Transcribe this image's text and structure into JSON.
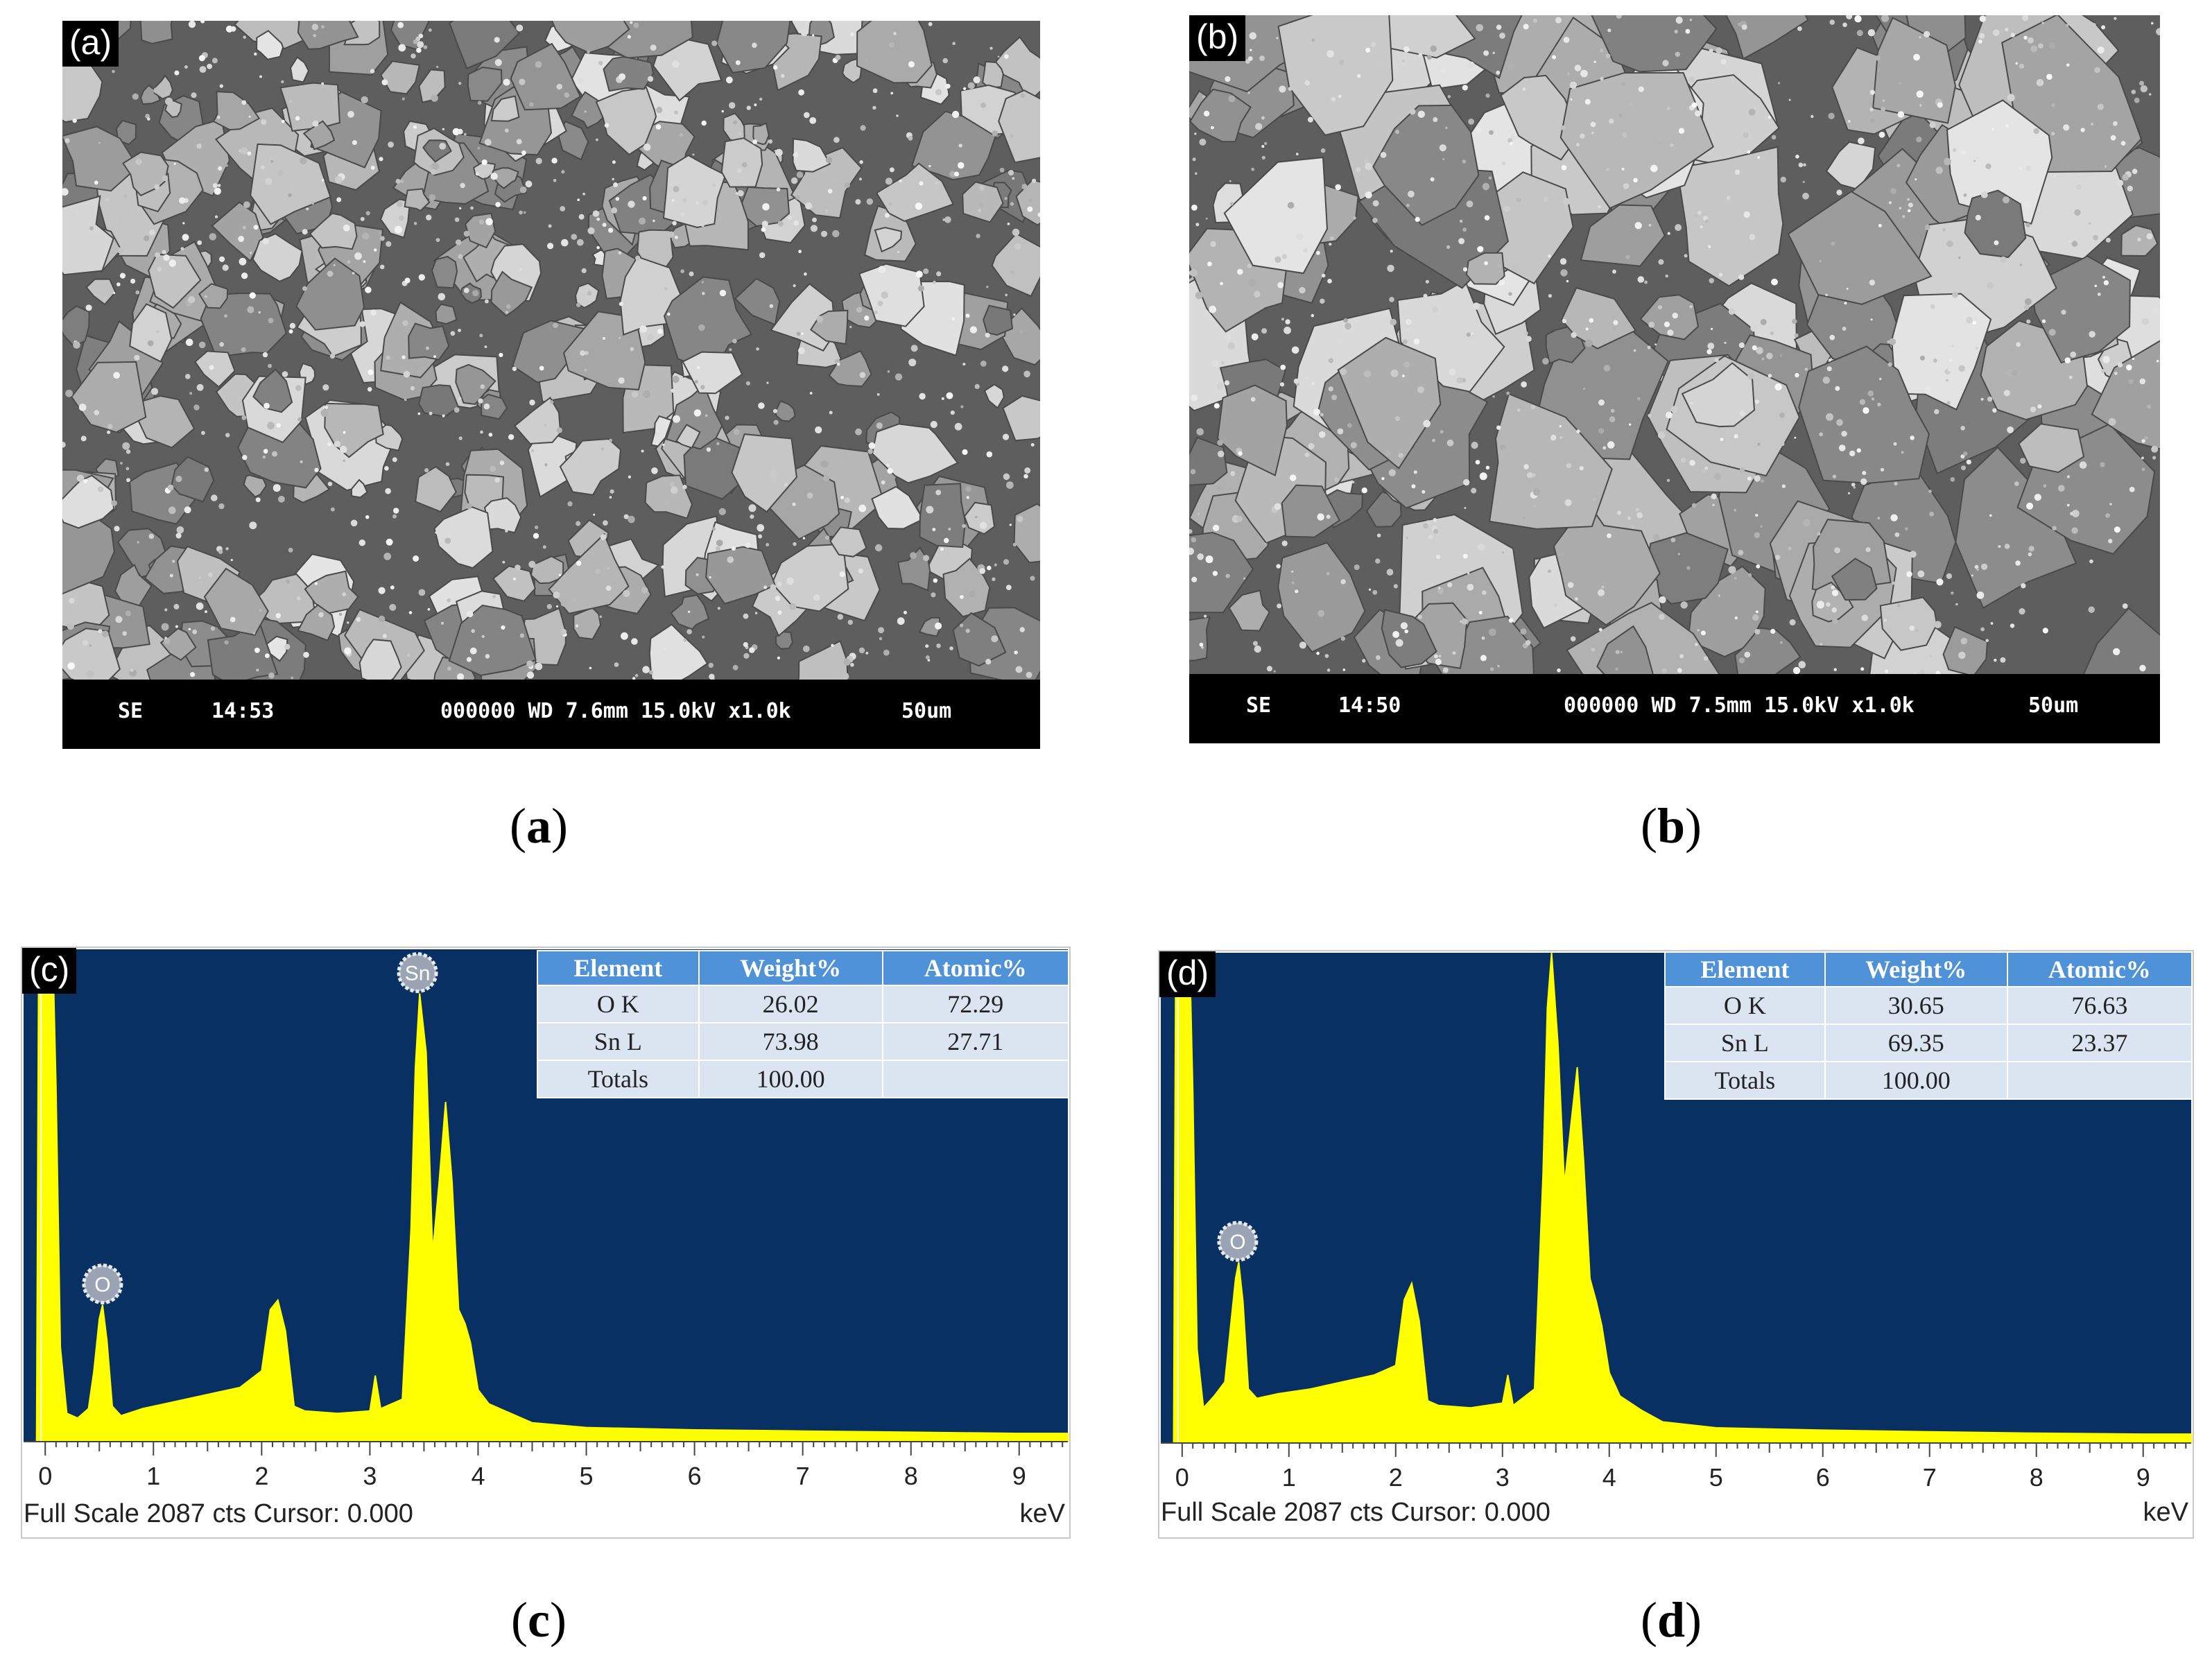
{
  "panels": {
    "a": {
      "tag": "(a)",
      "sem_bar": {
        "mode": "SE",
        "time": "14:53",
        "info": "000000 WD 7.6mm 15.0kV x1.0k",
        "scale": "50um"
      },
      "caption_open": "(",
      "caption_letter": "a",
      "caption_close": ")"
    },
    "b": {
      "tag": "(b)",
      "sem_bar": {
        "mode": "SE",
        "time": "14:50",
        "info": "000000 WD 7.5mm 15.0kV x1.0k",
        "scale": "50um"
      },
      "caption_open": "(",
      "caption_letter": "b",
      "caption_close": ")"
    },
    "c": {
      "tag": "(c)",
      "footer_left": "Full Scale 2087 cts Cursor: 0.000",
      "footer_right": "keV",
      "caption_open": "(",
      "caption_letter": "c",
      "caption_close": ")",
      "table": {
        "headers": [
          "Element",
          "Weight%",
          "Atomic%"
        ],
        "rows": [
          [
            "O K",
            "26.02",
            "72.29"
          ],
          [
            "Sn L",
            "73.98",
            "27.71"
          ],
          [
            "Totals",
            "100.00",
            ""
          ]
        ]
      }
    },
    "d": {
      "tag": "(d)",
      "footer_left": "Full Scale 2087 cts Cursor: 0.000",
      "footer_right": "keV",
      "caption_open": "(",
      "caption_letter": "d",
      "caption_close": ")",
      "table": {
        "headers": [
          "Element",
          "Weight%",
          "Atomic%"
        ],
        "rows": [
          [
            "O K",
            "30.65",
            "76.63"
          ],
          [
            "Sn L",
            "69.35",
            "23.37"
          ],
          [
            "Totals",
            "100.00",
            ""
          ]
        ]
      }
    }
  },
  "colors": {
    "spectrum_bg": "#083062",
    "spectrum_fill": "#ffff00",
    "table_header": "#4f92d7",
    "table_cell": "#dbe5f1"
  },
  "chart_data": [
    {
      "type": "area",
      "panel": "c",
      "x_ticks": [
        0,
        1,
        2,
        3,
        4,
        5,
        6,
        7,
        8,
        9
      ],
      "xlim": [
        -0.2,
        9.45
      ],
      "ylim": [
        0,
        2087
      ],
      "xlabel": "keV",
      "peak_labels": [
        {
          "label": "O",
          "x": 0.53
        },
        {
          "label": "Sn",
          "x": 3.44
        }
      ],
      "x": [
        -0.2,
        -0.08,
        -0.06,
        0.0,
        0.04,
        0.07,
        0.1,
        0.14,
        0.2,
        0.3,
        0.4,
        0.45,
        0.5,
        0.53,
        0.57,
        0.62,
        0.7,
        0.9,
        1.2,
        1.5,
        1.8,
        2.0,
        2.08,
        2.15,
        2.22,
        2.3,
        2.4,
        2.7,
        3.0,
        3.05,
        3.1,
        3.3,
        3.38,
        3.42,
        3.46,
        3.52,
        3.58,
        3.64,
        3.7,
        3.76,
        3.82,
        3.88,
        3.93,
        4.0,
        4.1,
        4.3,
        4.5,
        5.0,
        6.0,
        7.0,
        8.0,
        9.0,
        9.45
      ],
      "y": [
        0,
        0,
        2087,
        2087,
        2087,
        2087,
        1500,
        400,
        120,
        100,
        140,
        300,
        520,
        580,
        430,
        150,
        110,
        140,
        170,
        200,
        230,
        300,
        560,
        600,
        470,
        150,
        130,
        120,
        130,
        280,
        140,
        180,
        900,
        1580,
        1900,
        1650,
        800,
        1100,
        1440,
        1100,
        560,
        500,
        420,
        220,
        160,
        120,
        80,
        60,
        50,
        45,
        40,
        35,
        35
      ]
    },
    {
      "type": "area",
      "panel": "d",
      "x_ticks": [
        0,
        1,
        2,
        3,
        4,
        5,
        6,
        7,
        8,
        9
      ],
      "xlim": [
        -0.2,
        9.45
      ],
      "ylim": [
        0,
        2087
      ],
      "xlabel": "keV",
      "peak_labels": [
        {
          "label": "O",
          "x": 0.52
        },
        {
          "label": "Sn",
          "x": 3.45
        }
      ],
      "x": [
        -0.2,
        -0.08,
        -0.06,
        0.0,
        0.04,
        0.07,
        0.1,
        0.14,
        0.2,
        0.3,
        0.4,
        0.45,
        0.5,
        0.53,
        0.57,
        0.62,
        0.7,
        0.9,
        1.2,
        1.5,
        1.8,
        2.0,
        2.08,
        2.15,
        2.22,
        2.3,
        2.4,
        2.7,
        3.0,
        3.05,
        3.1,
        3.3,
        3.38,
        3.42,
        3.46,
        3.52,
        3.58,
        3.64,
        3.7,
        3.76,
        3.82,
        3.88,
        3.93,
        4.0,
        4.1,
        4.3,
        4.5,
        5.0,
        6.0,
        7.0,
        8.0,
        9.0,
        9.45
      ],
      "y": [
        0,
        0,
        2087,
        2087,
        2087,
        2087,
        1500,
        400,
        150,
        200,
        260,
        480,
        700,
        770,
        600,
        230,
        190,
        210,
        230,
        260,
        290,
        330,
        610,
        680,
        520,
        180,
        160,
        150,
        170,
        290,
        160,
        230,
        1150,
        1850,
        2087,
        1700,
        1100,
        1350,
        1600,
        1200,
        700,
        600,
        500,
        300,
        200,
        140,
        90,
        65,
        55,
        48,
        42,
        38,
        38
      ]
    }
  ]
}
